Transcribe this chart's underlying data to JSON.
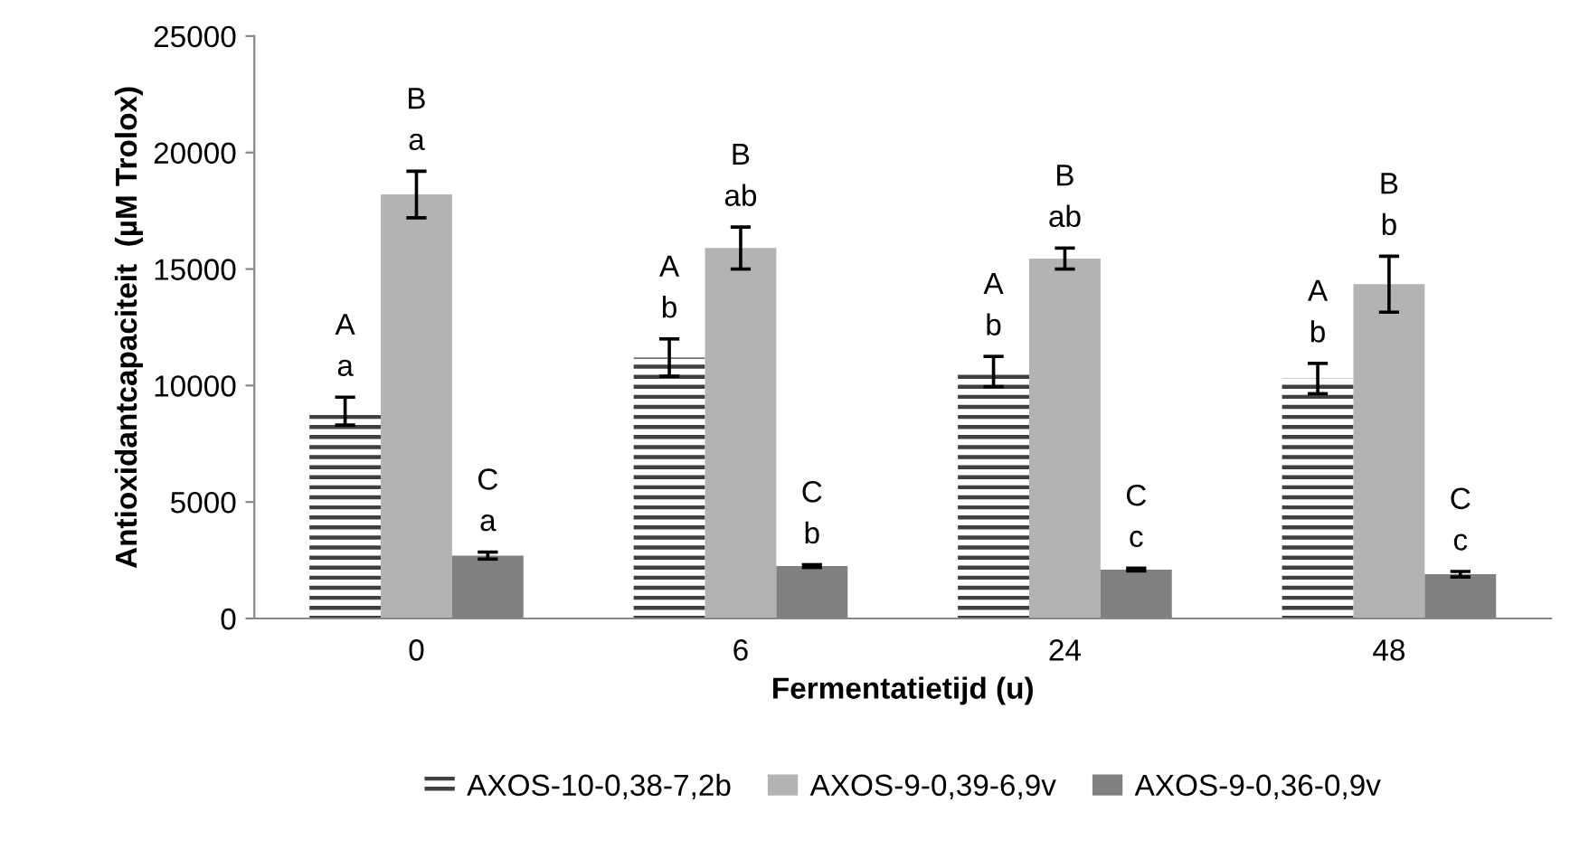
{
  "chart_data": {
    "type": "bar",
    "xlabel": "Fermentatietijd (u)",
    "ylabel": "Antioxidantcapaciteit  (µM Trolox)",
    "categories": [
      "0",
      "6",
      "24",
      "48"
    ],
    "series": [
      {
        "name": "AXOS-10-0,38-7,2b",
        "color": "#404040",
        "values": [
          8900,
          11200,
          10600,
          10300
        ],
        "errors": [
          600,
          800,
          650,
          650
        ],
        "value_labels": [
          "A\na",
          "A\nb",
          "A\nb",
          "A\nb"
        ]
      },
      {
        "name": "AXOS-9-0,39-6,9v",
        "color": "#b3b3b3",
        "values": [
          18200,
          15900,
          15450,
          14350
        ],
        "errors": [
          1000,
          900,
          450,
          1200
        ],
        "value_labels": [
          "B\na",
          "B\nab",
          "B\nab",
          "B\nb"
        ]
      },
      {
        "name": "AXOS-9-0,36-0,9v",
        "color": "#808080",
        "values": [
          2700,
          2250,
          2100,
          1900
        ],
        "errors": [
          150,
          60,
          60,
          120
        ],
        "value_labels": [
          "C\na",
          "C\nb",
          "C\nc",
          "C\nc"
        ]
      }
    ],
    "ylim": [
      0,
      25000
    ],
    "yticks": [
      0,
      5000,
      10000,
      15000,
      20000,
      25000
    ],
    "grid": false,
    "legend": "bottom"
  }
}
